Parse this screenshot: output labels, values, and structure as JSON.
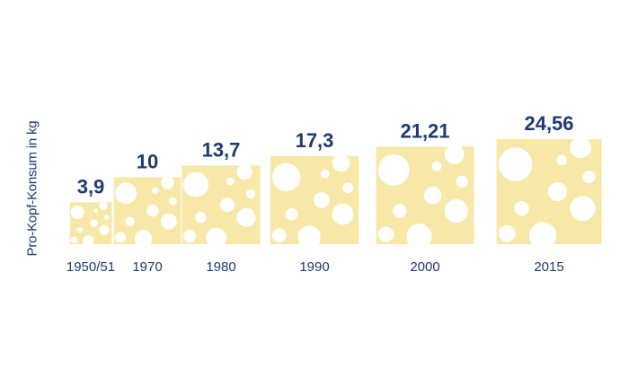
{
  "chart_data": {
    "type": "bar",
    "categories": [
      "1950/51",
      "1970",
      "1980",
      "1990",
      "2000",
      "2015"
    ],
    "value_labels": [
      "3,9",
      "10",
      "13,7",
      "17,3",
      "21,21",
      "24,56"
    ],
    "values": [
      3.9,
      10,
      13.7,
      17.3,
      21.21,
      24.56
    ],
    "ylabel": "Pro-Kopf-Konsum in kg",
    "grid": false,
    "legend": "none"
  },
  "colors": {
    "cheese": "#f8e8a8",
    "hole": "#ffffff",
    "label": "#1f3a73"
  },
  "icons": [
    "cheese-block-icon"
  ]
}
